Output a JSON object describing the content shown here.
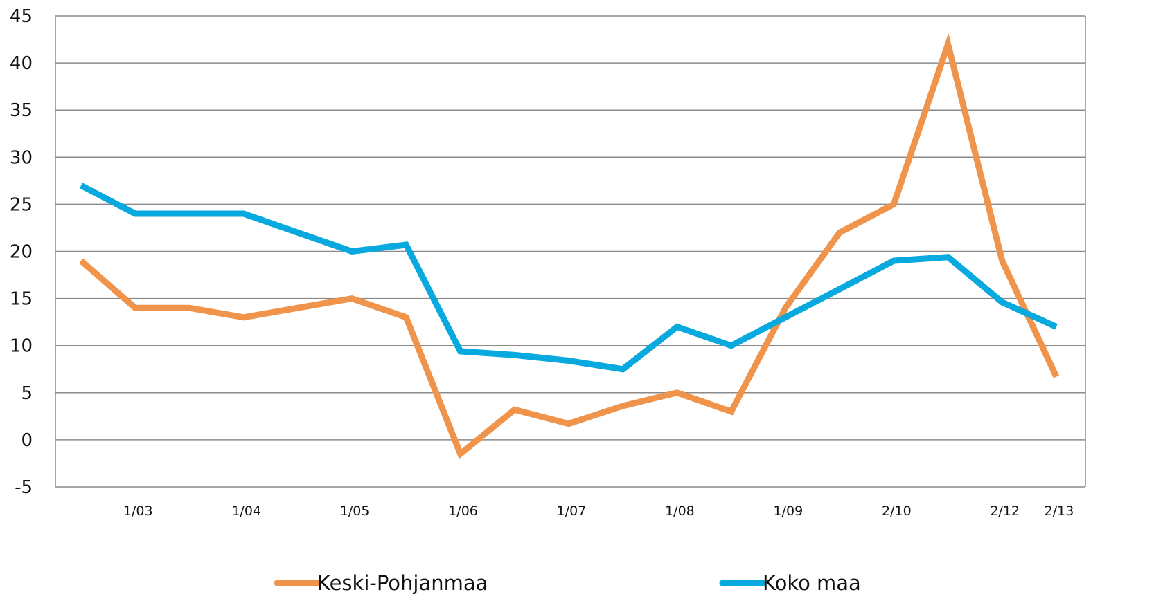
{
  "chart_data": {
    "type": "line",
    "title": "",
    "xlabel": "",
    "ylabel": "",
    "ylim": [
      -5,
      45
    ],
    "yticks": [
      -5,
      0,
      5,
      10,
      15,
      20,
      25,
      30,
      35,
      40,
      45
    ],
    "grid": true,
    "legend_position": "bottom",
    "x_tick_labels": [
      {
        "label": "1/03",
        "index": 1
      },
      {
        "label": "1/04",
        "index": 3
      },
      {
        "label": "1/05",
        "index": 5
      },
      {
        "label": "1/06",
        "index": 7
      },
      {
        "label": "1/07",
        "index": 9
      },
      {
        "label": "1/08",
        "index": 11
      },
      {
        "label": "1/09",
        "index": 13
      },
      {
        "label": "2/10",
        "index": 15
      },
      {
        "label": "2/12",
        "index": 17
      },
      {
        "label": "2/13",
        "index": 18
      }
    ],
    "series": [
      {
        "name": "Keski-Pohjanmaa",
        "color": "#f0944c",
        "values": [
          19,
          14,
          14,
          13,
          14,
          15,
          13,
          -1.5,
          3.2,
          1.7,
          3.6,
          5,
          3,
          14,
          22,
          25,
          42,
          19,
          6.7
        ]
      },
      {
        "name": "Koko maa",
        "color": "#08a9de",
        "values": [
          27,
          24,
          24,
          24,
          22,
          20,
          20.7,
          9.4,
          9,
          8.4,
          7.5,
          12,
          10,
          13,
          16,
          19,
          19.4,
          14.6,
          12
        ]
      }
    ]
  }
}
